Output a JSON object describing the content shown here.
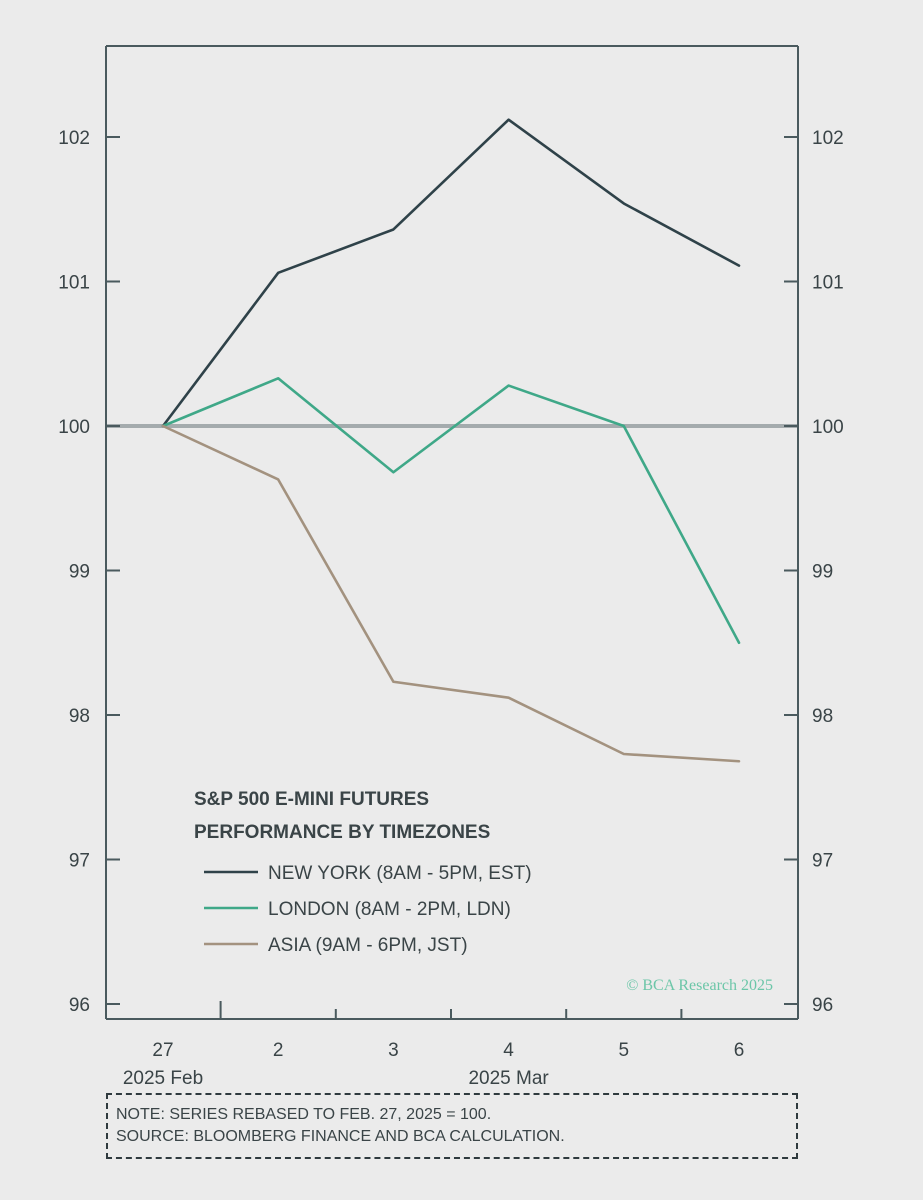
{
  "chart_data": {
    "type": "line",
    "title": "S&P 500 E-MINI FUTURES",
    "subtitle": "PERFORMANCE BY TIMEZONES",
    "x_categories": [
      "27",
      "2",
      "3",
      "4",
      "5",
      "6"
    ],
    "x_group_labels": [
      {
        "label": "2025 Feb",
        "under_category": "27"
      },
      {
        "label": "2025 Mar",
        "under_category": "4"
      }
    ],
    "y_ticks": [
      96,
      97,
      98,
      99,
      100,
      101,
      102
    ],
    "ylim": [
      96,
      102.65
    ],
    "y_axes": "left and right (mirrored)",
    "reference_line": 100,
    "series": [
      {
        "name": "NEW YORK (8AM - 5PM, EST)",
        "color": "#2f4249",
        "values": [
          100,
          101.06,
          101.36,
          102.12,
          101.54,
          101.11
        ]
      },
      {
        "name": "LONDON (8AM - 2PM, LDN)",
        "color": "#3fa888",
        "values": [
          100,
          100.33,
          99.68,
          100.28,
          100.0,
          98.5
        ]
      },
      {
        "name": "ASIA (9AM - 6PM, JST)",
        "color": "#a3927f",
        "values": [
          100,
          99.63,
          98.23,
          98.12,
          97.73,
          97.68
        ]
      }
    ],
    "copyright": "© BCA Research 2025",
    "legend_position": "bottom-left, inside plot"
  },
  "notes": {
    "note": "NOTE: SERIES REBASED TO FEB. 27, 2025 = 100.",
    "source": "SOURCE: BLOOMBERG FINANCE AND BCA CALCULATION."
  }
}
